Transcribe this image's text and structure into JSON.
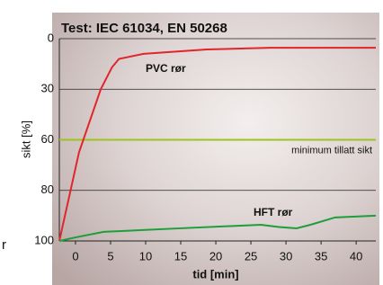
{
  "chart_data": {
    "type": "line",
    "title": "Test: IEC 61034, EN 50268",
    "x_label": "tid [min]",
    "y_label": "sikt [%]",
    "xlim": [
      -2.3,
      42.8
    ],
    "xticks": [
      0,
      5,
      10,
      15,
      20,
      25,
      30,
      35,
      40
    ],
    "ylim": [
      0,
      100
    ],
    "yticks": [
      0,
      30,
      60,
      80,
      100
    ],
    "y_reversed": true,
    "grid": true,
    "threshold": {
      "value": 60,
      "label": "minimum tillatt sikt",
      "color": "#9cc41e"
    },
    "series": [
      {
        "name": "PVC rør",
        "color": "#e1262b",
        "x": [
          -2.3,
          0.5,
          3.6,
          5.2,
          6.2,
          9.7,
          18.7,
          27.7,
          42.8
        ],
        "values": [
          100,
          65,
          30,
          17,
          12,
          9,
          6.4,
          5.4,
          5.4
        ]
      },
      {
        "name": "HFT rør",
        "color": "#1d9e3a",
        "x": [
          -2.3,
          0,
          4,
          14.9,
          26.4,
          29,
          31.5,
          33.5,
          37,
          42.8
        ],
        "values": [
          100,
          98.6,
          96.4,
          95,
          93.6,
          94.5,
          95,
          93.6,
          90.7,
          90
        ]
      }
    ],
    "fragment": "r"
  }
}
